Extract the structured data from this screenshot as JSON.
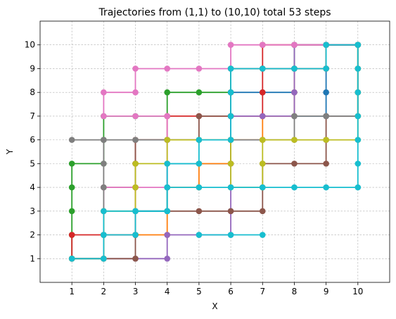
{
  "chart_data": {
    "type": "line",
    "title": "Trajectories from (1,1) to (10,10) total 53 steps",
    "xlabel": "X",
    "ylabel": "Y",
    "xlim": [
      0,
      11
    ],
    "ylim": [
      0,
      11
    ],
    "xticks": [
      "1",
      "2",
      "3",
      "4",
      "5",
      "6",
      "7",
      "8",
      "9",
      "10"
    ],
    "yticks": [
      "1",
      "2",
      "3",
      "4",
      "5",
      "6",
      "7",
      "8",
      "9",
      "10"
    ],
    "grid": true,
    "legend": "none",
    "series": [
      {
        "color": "#1f77b4",
        "points": [
          [
            1,
            1
          ],
          [
            2,
            1
          ],
          [
            2,
            2
          ],
          [
            3,
            2
          ],
          [
            3,
            3
          ],
          [
            4,
            3
          ],
          [
            4,
            4
          ],
          [
            4,
            5
          ],
          [
            5,
            5
          ],
          [
            6,
            5
          ],
          [
            6,
            6
          ],
          [
            6,
            7
          ],
          [
            6,
            8
          ],
          [
            7,
            8
          ],
          [
            8,
            8
          ],
          [
            8,
            7
          ],
          [
            9,
            7
          ],
          [
            9,
            8
          ],
          [
            9,
            9
          ],
          [
            9,
            10
          ],
          [
            10,
            10
          ]
        ]
      },
      {
        "color": "#ff7f0e",
        "points": [
          [
            1,
            1
          ],
          [
            2,
            1
          ],
          [
            2,
            2
          ],
          [
            3,
            2
          ],
          [
            4,
            2
          ],
          [
            4,
            3
          ],
          [
            4,
            4
          ],
          [
            5,
            4
          ],
          [
            5,
            5
          ],
          [
            6,
            5
          ],
          [
            6,
            6
          ],
          [
            7,
            6
          ],
          [
            7,
            7
          ],
          [
            8,
            7
          ],
          [
            8,
            8
          ],
          [
            8,
            9
          ],
          [
            9,
            9
          ],
          [
            9,
            10
          ],
          [
            10,
            10
          ]
        ]
      },
      {
        "color": "#2ca02c",
        "points": [
          [
            1,
            1
          ],
          [
            1,
            2
          ],
          [
            1,
            3
          ],
          [
            1,
            4
          ],
          [
            1,
            5
          ],
          [
            2,
            5
          ],
          [
            2,
            6
          ],
          [
            2,
            7
          ],
          [
            3,
            7
          ],
          [
            4,
            7
          ],
          [
            4,
            8
          ],
          [
            5,
            8
          ],
          [
            6,
            8
          ],
          [
            6,
            9
          ],
          [
            7,
            9
          ],
          [
            8,
            9
          ],
          [
            8,
            10
          ],
          [
            9,
            10
          ],
          [
            10,
            10
          ]
        ]
      },
      {
        "color": "#d62728",
        "points": [
          [
            1,
            1
          ],
          [
            1,
            2
          ],
          [
            2,
            2
          ],
          [
            3,
            2
          ],
          [
            3,
            3
          ],
          [
            3,
            4
          ],
          [
            3,
            5
          ],
          [
            3,
            6
          ],
          [
            4,
            6
          ],
          [
            4,
            7
          ],
          [
            5,
            7
          ],
          [
            6,
            7
          ],
          [
            7,
            7
          ],
          [
            7,
            8
          ],
          [
            7,
            9
          ],
          [
            7,
            10
          ],
          [
            8,
            10
          ],
          [
            9,
            10
          ],
          [
            10,
            10
          ]
        ]
      },
      {
        "color": "#9467bd",
        "points": [
          [
            1,
            1
          ],
          [
            2,
            1
          ],
          [
            3,
            1
          ],
          [
            4,
            1
          ],
          [
            4,
            2
          ],
          [
            5,
            2
          ],
          [
            6,
            2
          ],
          [
            6,
            3
          ],
          [
            6,
            4
          ],
          [
            6,
            5
          ],
          [
            6,
            6
          ],
          [
            6,
            7
          ],
          [
            7,
            7
          ],
          [
            8,
            7
          ],
          [
            8,
            8
          ],
          [
            8,
            9
          ],
          [
            8,
            10
          ],
          [
            9,
            10
          ],
          [
            10,
            10
          ]
        ]
      },
      {
        "color": "#8c564b",
        "points": [
          [
            1,
            1
          ],
          [
            2,
            1
          ],
          [
            3,
            1
          ],
          [
            3,
            2
          ],
          [
            3,
            3
          ],
          [
            4,
            3
          ],
          [
            5,
            3
          ],
          [
            6,
            3
          ],
          [
            7,
            3
          ],
          [
            7,
            4
          ],
          [
            7,
            5
          ],
          [
            8,
            5
          ],
          [
            9,
            5
          ],
          [
            9,
            6
          ],
          [
            9,
            7
          ],
          [
            10,
            7
          ],
          [
            10,
            8
          ],
          [
            10,
            9
          ],
          [
            10,
            10
          ]
        ]
      },
      {
        "color": "#8c564b",
        "points": [
          [
            2,
            4
          ],
          [
            3,
            4
          ],
          [
            3,
            5
          ],
          [
            3,
            6
          ],
          [
            4,
            6
          ],
          [
            5,
            6
          ],
          [
            5,
            7
          ],
          [
            6,
            7
          ],
          [
            6,
            8
          ],
          [
            6,
            9
          ],
          [
            7,
            9
          ],
          [
            8,
            9
          ],
          [
            9,
            9
          ],
          [
            9,
            10
          ],
          [
            10,
            10
          ]
        ]
      },
      {
        "color": "#e377c2",
        "points": [
          [
            1,
            1
          ],
          [
            2,
            1
          ],
          [
            2,
            2
          ],
          [
            2,
            3
          ],
          [
            2,
            4
          ],
          [
            3,
            4
          ],
          [
            4,
            4
          ],
          [
            4,
            5
          ],
          [
            4,
            6
          ],
          [
            4,
            7
          ],
          [
            3,
            7
          ],
          [
            2,
            7
          ],
          [
            2,
            8
          ],
          [
            3,
            8
          ],
          [
            3,
            9
          ],
          [
            4,
            9
          ],
          [
            5,
            9
          ],
          [
            6,
            9
          ],
          [
            6,
            10
          ],
          [
            7,
            10
          ],
          [
            8,
            10
          ],
          [
            9,
            10
          ],
          [
            10,
            10
          ]
        ]
      },
      {
        "color": "#7f7f7f",
        "points": [
          [
            1,
            1
          ],
          [
            2,
            1
          ],
          [
            2,
            2
          ],
          [
            2,
            3
          ],
          [
            2,
            4
          ],
          [
            2,
            5
          ],
          [
            2,
            6
          ],
          [
            1,
            6
          ],
          [
            2,
            6
          ],
          [
            3,
            6
          ],
          [
            4,
            6
          ],
          [
            5,
            6
          ],
          [
            6,
            6
          ],
          [
            7,
            6
          ],
          [
            8,
            6
          ],
          [
            8,
            7
          ],
          [
            9,
            7
          ],
          [
            10,
            7
          ],
          [
            10,
            8
          ],
          [
            10,
            9
          ],
          [
            10,
            10
          ]
        ]
      },
      {
        "color": "#bcbd22",
        "points": [
          [
            1,
            1
          ],
          [
            2,
            1
          ],
          [
            2,
            2
          ],
          [
            2,
            3
          ],
          [
            3,
            3
          ],
          [
            3,
            4
          ],
          [
            3,
            5
          ],
          [
            4,
            5
          ],
          [
            4,
            6
          ],
          [
            5,
            6
          ],
          [
            6,
            6
          ],
          [
            6,
            5
          ],
          [
            6,
            4
          ],
          [
            7,
            4
          ],
          [
            7,
            5
          ],
          [
            7,
            6
          ],
          [
            8,
            6
          ],
          [
            9,
            6
          ],
          [
            10,
            6
          ],
          [
            10,
            7
          ],
          [
            10,
            8
          ],
          [
            10,
            9
          ],
          [
            10,
            10
          ]
        ]
      },
      {
        "color": "#17becf",
        "points": [
          [
            1,
            1
          ],
          [
            2,
            1
          ],
          [
            2,
            2
          ],
          [
            3,
            2
          ],
          [
            3,
            3
          ],
          [
            4,
            3
          ],
          [
            4,
            4
          ],
          [
            5,
            4
          ],
          [
            6,
            4
          ],
          [
            7,
            4
          ],
          [
            8,
            4
          ],
          [
            9,
            4
          ],
          [
            10,
            4
          ],
          [
            10,
            5
          ],
          [
            10,
            6
          ],
          [
            10,
            7
          ],
          [
            10,
            8
          ],
          [
            10,
            9
          ],
          [
            10,
            10
          ]
        ]
      },
      {
        "color": "#17becf",
        "points": [
          [
            2,
            2
          ],
          [
            2,
            3
          ],
          [
            3,
            3
          ],
          [
            4,
            3
          ],
          [
            4,
            4
          ],
          [
            4,
            5
          ],
          [
            5,
            5
          ],
          [
            5,
            6
          ],
          [
            6,
            6
          ],
          [
            6,
            7
          ],
          [
            6,
            8
          ],
          [
            6,
            9
          ],
          [
            7,
            9
          ],
          [
            8,
            9
          ],
          [
            9,
            9
          ],
          [
            9,
            10
          ],
          [
            10,
            10
          ]
        ]
      },
      {
        "color": "#17becf",
        "points": [
          [
            5,
            2
          ],
          [
            6,
            2
          ],
          [
            7,
            2
          ]
        ]
      }
    ]
  }
}
